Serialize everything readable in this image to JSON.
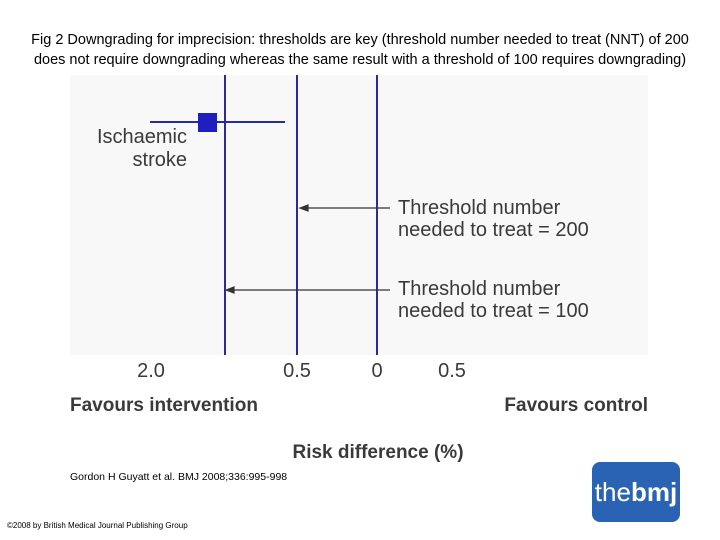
{
  "title": "Fig 2 Downgrading for imprecision: thresholds are key (threshold number needed to treat (NNT) of 200 does not require downgrading whereas the same result with a threshold of 100 requires downgrading)",
  "figure": {
    "outcome": [
      "Ischaemic",
      "stroke"
    ],
    "annotations": [
      [
        "Threshold number",
        "needed to treat = 200"
      ],
      [
        "Threshold number",
        "needed to treat = 100"
      ]
    ],
    "axis_tick_labels": [
      "2.0",
      "0.5",
      "0",
      "0.5"
    ],
    "favours_left": "Favours intervention",
    "favours_right": "Favours control",
    "axis_title": "Risk difference (%)"
  },
  "citation": "Gordon H Guyatt et al. BMJ 2008;336:995-998",
  "copyright": "©2008 by British Medical Journal Publishing Group",
  "logo": [
    "the",
    "bmj"
  ]
}
